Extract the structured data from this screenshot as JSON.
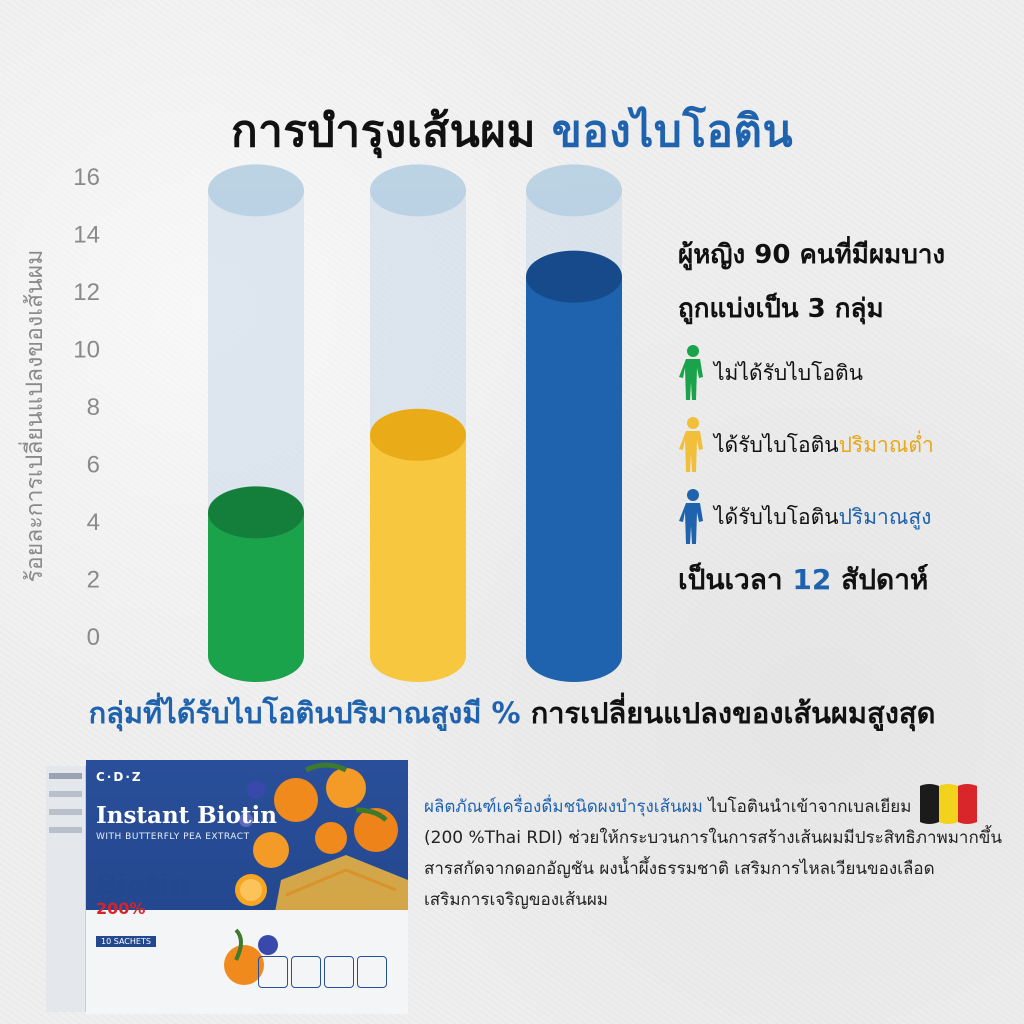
{
  "title": {
    "main": "การบำรุงเส้นผม",
    "accent": "ของไบโอติน"
  },
  "chart_data": {
    "type": "bar",
    "title": "การบำรุงเส้นผม ของไบโอติน",
    "ylabel": "ร้อยละการเปลี่ยนแปลงของเส้นผม",
    "xlabel": "",
    "ylim": [
      0,
      16
    ],
    "yticks": [
      "0",
      "2",
      "4",
      "6",
      "8",
      "10",
      "12",
      "14",
      "16"
    ],
    "grid": false,
    "categories": [
      "ไม่ได้รับไบโอติน",
      "ได้รับไบโอตินปริมาณต่ำ",
      "ได้รับไบโอตินปริมาณสูง"
    ],
    "values": [
      4.3,
      7.0,
      12.5
    ],
    "max_value": 15.5,
    "colors": [
      "#1aa34a",
      "#f7c740",
      "#1f62ad"
    ],
    "dark_colors": [
      "#147f3a",
      "#e9ab17",
      "#164a8a"
    ]
  },
  "info": {
    "heading_line1": "ผู้หญิง 90 คนที่มีผมบาง",
    "heading_line2": "ถูกแบ่งเป็น 3 กลุ่ม",
    "legend": [
      {
        "text": "ไม่ได้รับไบโอติน",
        "highlight": "",
        "color": "#1aa34a",
        "icon": "person-icon-green"
      },
      {
        "text": "ได้รับไบโอติน",
        "highlight": "ปริมาณต่ำ",
        "color": "#f2bf3a",
        "icon": "person-icon-yellow"
      },
      {
        "text": "ได้รับไบโอติน",
        "highlight": "ปริมาณสูง",
        "color": "#1f62ad",
        "icon": "person-icon-blue"
      }
    ],
    "footer_prefix": "เป็นเวลา",
    "footer_number": "12",
    "footer_suffix": "สัปดาห์"
  },
  "conclusion": {
    "accent": "กลุ่มที่ได้รับไบโอตินปริมาณสูงมี %",
    "rest": "การเปลี่ยนแปลงของเส้นผมสูงสุด"
  },
  "product": {
    "brand": "C·D·Z",
    "name": "Instant Biotin",
    "subtitle": "WITH BUTTERFLY PEA EXTRACT",
    "biotin_label": "Biotin",
    "biotin_percent": "200%",
    "sachets": "10 SACHETS"
  },
  "description": {
    "lead": "ผลิตภัณฑ์เครื่องดื่มชนิดผงบำรุงเส้นผม",
    "line1_rest": "ไบโอตินนำเข้าจากเบลเยียม",
    "line2": "(200 %Thai RDI) ช่วยให้กระบวนการในการสร้างเส้นผมมีประสิทธิภาพมากขึ้น",
    "line3": "สารสกัดจากดอกอัญชัน ผงน้ำผึ้งธรรมชาติ เสริมการไหลเวียนของเลือด",
    "line4": "เสริมการเจริญของเส้นผม"
  },
  "flag_colors": [
    "#1b1b1b",
    "#f2d21c",
    "#d8262a"
  ]
}
